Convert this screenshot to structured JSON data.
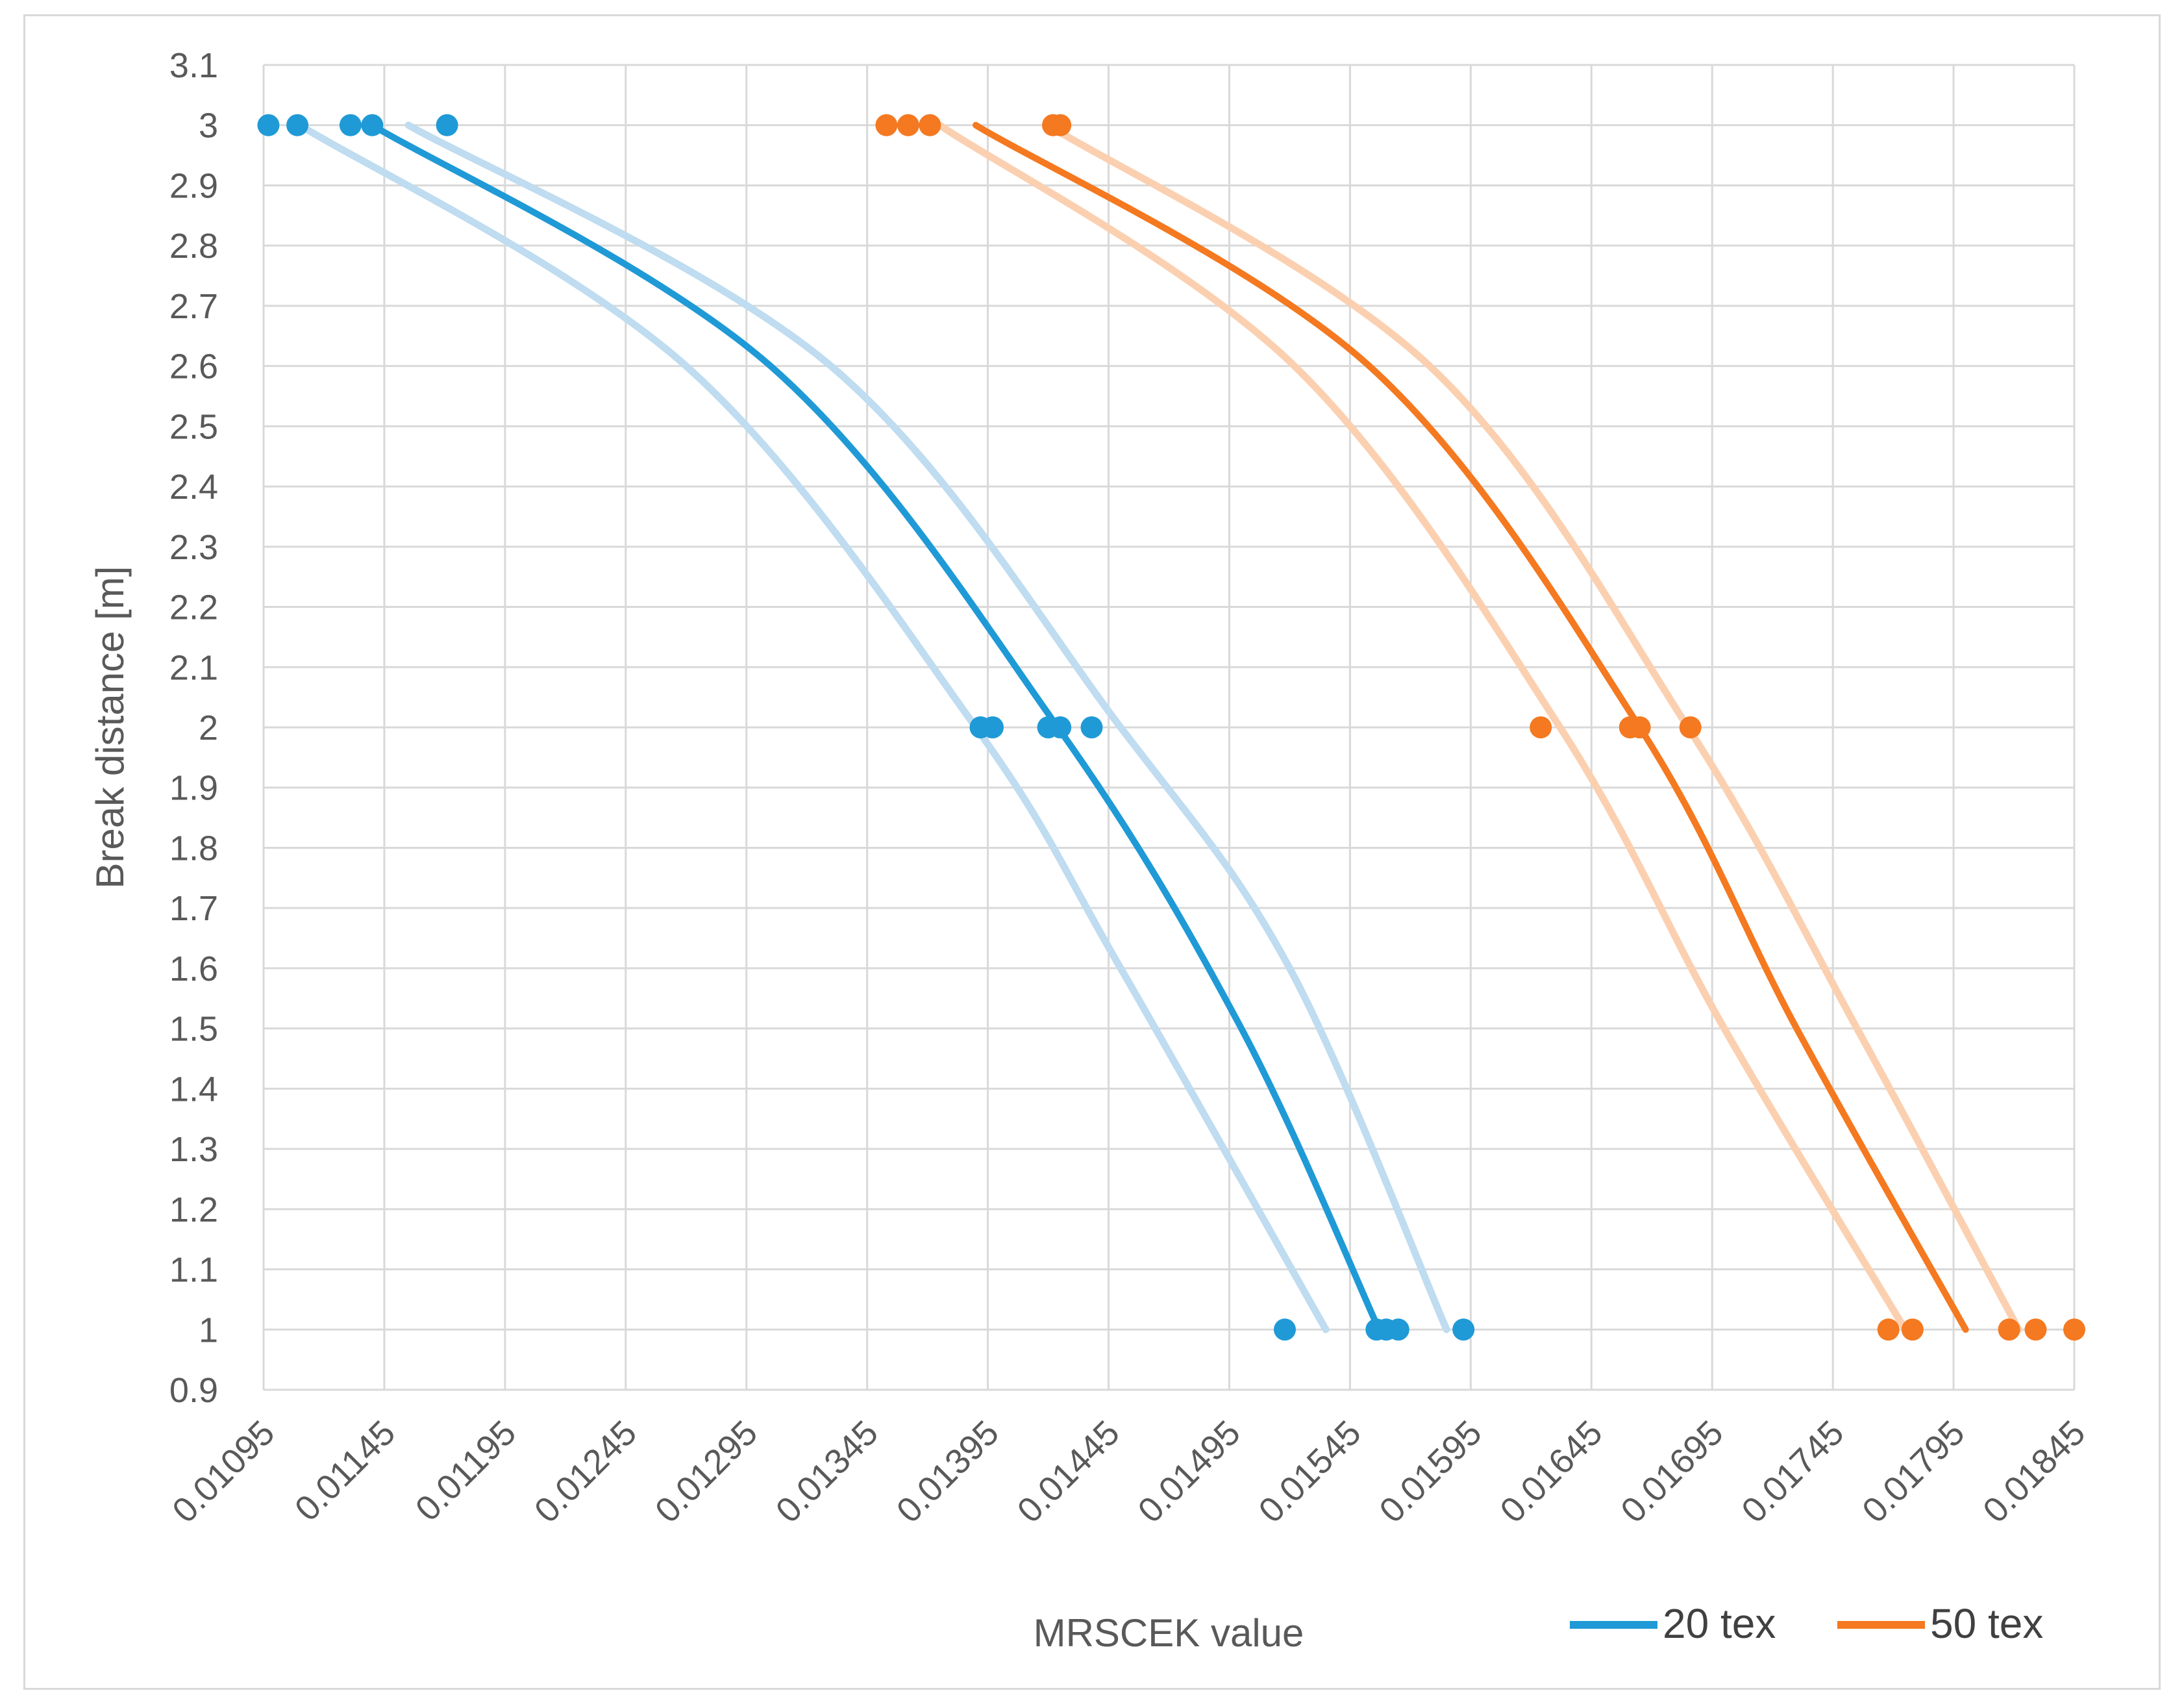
{
  "chart_data": {
    "type": "scatter",
    "title": "",
    "xlabel": "MRSCEK value",
    "ylabel": "Break distance [m]",
    "xlim": [
      0.01095,
      0.01845
    ],
    "ylim": [
      0.9,
      3.1
    ],
    "x_ticks": [
      "0.01095",
      "0.01145",
      "0.01195",
      "0.01245",
      "0.01295",
      "0.01345",
      "0.01395",
      "0.01445",
      "0.01495",
      "0.01545",
      "0.01595",
      "0.01645",
      "0.01695",
      "0.01745",
      "0.01795",
      "0.01845"
    ],
    "y_ticks": [
      "3.1",
      "3",
      "2.9",
      "2.8",
      "2.7",
      "2.6",
      "2.5",
      "2.4",
      "2.3",
      "2.2",
      "2.1",
      "2",
      "1.9",
      "1.8",
      "1.7",
      "1.6",
      "1.5",
      "1.4",
      "1.3",
      "1.2",
      "1.1",
      "1",
      "0.9"
    ],
    "grid": true,
    "legend_position": "bottom-right",
    "series": [
      {
        "name": "20 tex",
        "color": "#1f9ad6",
        "band_color": "#bfdcf0",
        "points": [
          [
            0.01097,
            3
          ],
          [
            0.01109,
            3
          ],
          [
            0.01131,
            3
          ],
          [
            0.0114,
            3
          ],
          [
            0.01171,
            3
          ],
          [
            0.01392,
            2
          ],
          [
            0.01397,
            2
          ],
          [
            0.0142,
            2
          ],
          [
            0.01425,
            2
          ],
          [
            0.01438,
            2
          ],
          [
            0.01518,
            1
          ],
          [
            0.01556,
            1
          ],
          [
            0.0156,
            1
          ],
          [
            0.01565,
            1
          ],
          [
            0.01592,
            1
          ]
        ],
        "trend": [
          [
            0.0114,
            3.0
          ],
          [
            0.01305,
            2.6
          ],
          [
            0.01424,
            2.0
          ],
          [
            0.015,
            1.5
          ],
          [
            0.01557,
            1.0
          ]
        ],
        "band_lower": [
          [
            0.0111,
            3.0
          ],
          [
            0.0127,
            2.6
          ],
          [
            0.0139,
            2.0
          ],
          [
            0.0145,
            1.6
          ],
          [
            0.01535,
            1.0
          ]
        ],
        "band_upper": [
          [
            0.01155,
            3.0
          ],
          [
            0.0133,
            2.6
          ],
          [
            0.0145,
            2.0
          ],
          [
            0.0152,
            1.6
          ],
          [
            0.01585,
            1.0
          ]
        ]
      },
      {
        "name": "50 tex",
        "color": "#f47920",
        "band_color": "#fbd0b0",
        "points": [
          [
            0.01353,
            3
          ],
          [
            0.01362,
            3
          ],
          [
            0.01371,
            3
          ],
          [
            0.01422,
            3
          ],
          [
            0.01425,
            3
          ],
          [
            0.01624,
            2
          ],
          [
            0.01661,
            2
          ],
          [
            0.01665,
            2
          ],
          [
            0.01686,
            2
          ],
          [
            0.01768,
            1
          ],
          [
            0.01778,
            1
          ],
          [
            0.01818,
            1
          ],
          [
            0.01829,
            1
          ],
          [
            0.01845,
            1
          ]
        ],
        "trend": [
          [
            0.0139,
            3.0
          ],
          [
            0.01553,
            2.6
          ],
          [
            0.01665,
            2.0
          ],
          [
            0.0173,
            1.5
          ],
          [
            0.018,
            1.0
          ]
        ],
        "band_lower": [
          [
            0.01375,
            3.0
          ],
          [
            0.01522,
            2.6
          ],
          [
            0.01632,
            2.0
          ],
          [
            0.017,
            1.5
          ],
          [
            0.01775,
            1.0
          ]
        ],
        "band_upper": [
          [
            0.0142,
            3.0
          ],
          [
            0.01578,
            2.6
          ],
          [
            0.01685,
            2.0
          ],
          [
            0.01755,
            1.5
          ],
          [
            0.01822,
            1.0
          ]
        ]
      }
    ]
  }
}
